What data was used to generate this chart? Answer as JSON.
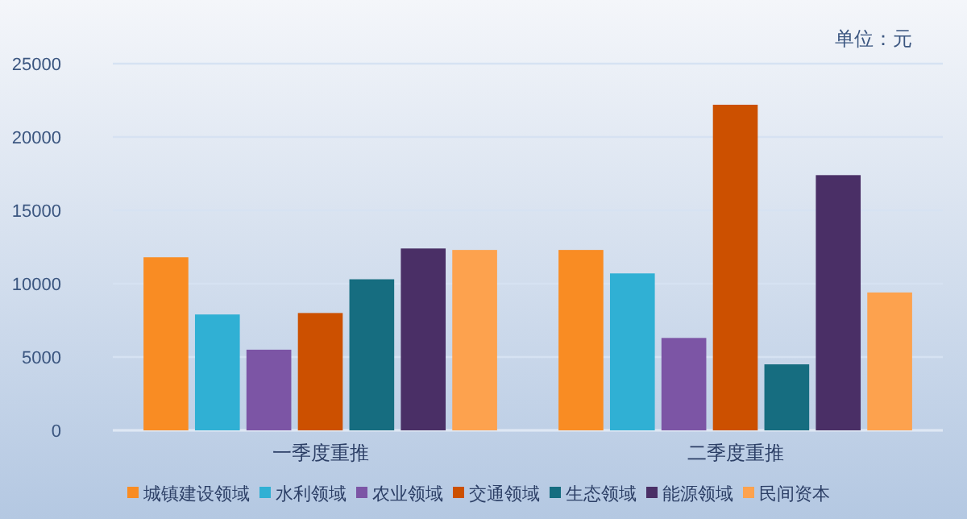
{
  "chart_data": {
    "type": "bar",
    "categories": [
      "一季度重推",
      "二季度重推"
    ],
    "series": [
      {
        "name": "城镇建设领域",
        "color": "#f98c23",
        "values": [
          11800,
          12300
        ]
      },
      {
        "name": "水利领域",
        "color": "#30b0d4",
        "values": [
          7900,
          10700
        ]
      },
      {
        "name": "农业领域",
        "color": "#7c55a5",
        "values": [
          5500,
          6300
        ]
      },
      {
        "name": "交通领域",
        "color": "#cc5000",
        "values": [
          8000,
          22200
        ]
      },
      {
        "name": "生态领域",
        "color": "#166d80",
        "values": [
          10300,
          4500
        ]
      },
      {
        "name": "能源领域",
        "color": "#4a2f66",
        "values": [
          12400,
          17400
        ]
      },
      {
        "name": "民间资本",
        "color": "#fda24e",
        "values": [
          12300,
          9400
        ]
      }
    ],
    "ylim": [
      0,
      25000
    ],
    "yticks": [
      0,
      5000,
      10000,
      15000,
      20000,
      25000
    ],
    "grid": "y",
    "legend": "bottom",
    "annotations": [
      "单位：元"
    ]
  }
}
